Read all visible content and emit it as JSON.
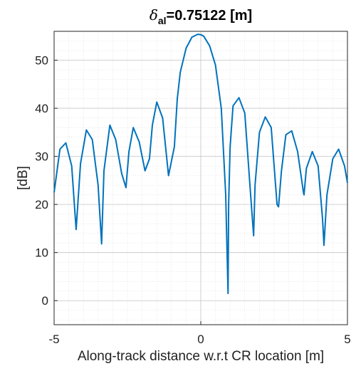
{
  "chart_data": {
    "type": "line",
    "title_symbol": "δ",
    "title_subscript": "al",
    "title_rest": "=0.75122 [m]",
    "xlabel": "Along-track distance w.r.t CR location [m]",
    "ylabel": "[dB]",
    "xlim": [
      -5,
      5
    ],
    "ylim": [
      -5,
      56
    ],
    "xticks": [
      -5,
      0,
      5
    ],
    "yticks": [
      0,
      10,
      20,
      30,
      40,
      50
    ],
    "grid": true,
    "minor_grid": true,
    "line_color": "#0072BD",
    "series": [
      {
        "x": [
          -5.0,
          -4.8,
          -4.6,
          -4.4,
          -4.25,
          -4.1,
          -3.9,
          -3.7,
          -3.5,
          -3.38,
          -3.3,
          -3.1,
          -2.9,
          -2.7,
          -2.55,
          -2.45,
          -2.3,
          -2.1,
          -1.9,
          -1.75,
          -1.65,
          -1.5,
          -1.3,
          -1.1,
          -0.9,
          -0.8,
          -0.7,
          -0.5,
          -0.3,
          -0.1,
          0.0,
          0.1,
          0.3,
          0.5,
          0.7,
          0.85,
          0.93,
          0.95,
          1.0,
          1.1,
          1.3,
          1.5,
          1.7,
          1.8,
          1.85,
          2.0,
          2.2,
          2.4,
          2.6,
          2.65,
          2.75,
          2.9,
          3.1,
          3.3,
          3.5,
          3.52,
          3.6,
          3.8,
          4.0,
          4.15,
          4.2,
          4.3,
          4.5,
          4.7,
          4.9,
          5.0
        ],
        "y": [
          22.5,
          31.5,
          32.8,
          28.0,
          14.8,
          28.5,
          35.5,
          33.5,
          24.0,
          11.8,
          27.0,
          36.5,
          33.5,
          26.5,
          23.5,
          31.0,
          36.0,
          33.0,
          27.0,
          29.5,
          36.5,
          41.3,
          38.0,
          26.0,
          32.0,
          42.0,
          47.5,
          52.5,
          54.8,
          55.4,
          55.3,
          55.0,
          53.0,
          49.0,
          40.0,
          22.0,
          1.5,
          20.0,
          32.0,
          40.5,
          42.2,
          39.0,
          22.0,
          13.5,
          24.0,
          35.0,
          38.2,
          36.0,
          20.0,
          19.5,
          27.0,
          34.5,
          35.3,
          31.0,
          22.5,
          22.0,
          27.5,
          31.0,
          28.0,
          17.0,
          11.5,
          22.0,
          29.5,
          31.5,
          28.0,
          24.5
        ]
      }
    ]
  }
}
